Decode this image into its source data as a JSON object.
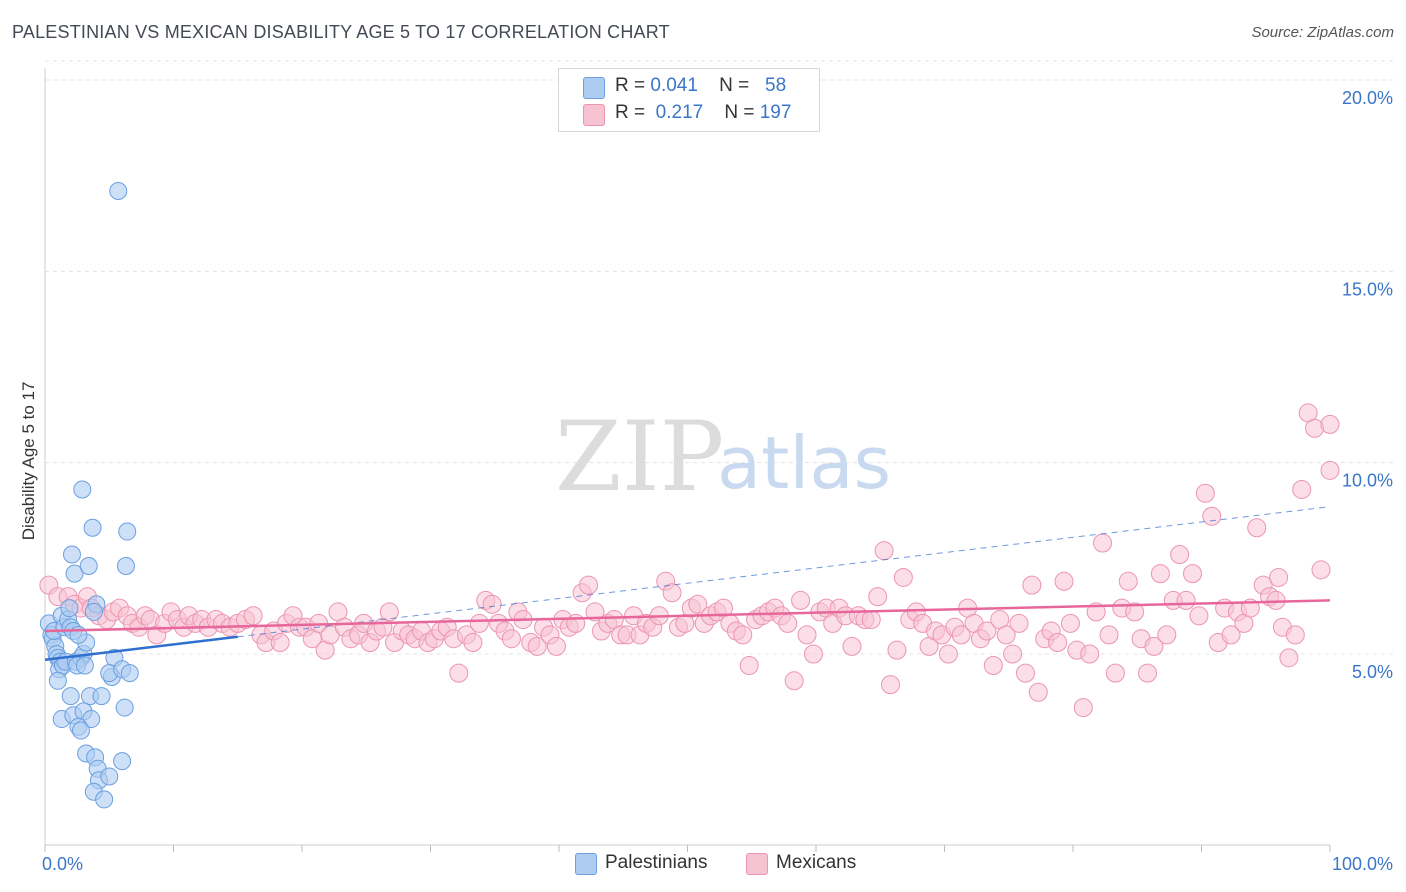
{
  "title": "PALESTINIAN VS MEXICAN DISABILITY AGE 5 TO 17 CORRELATION CHART",
  "source": "Source: ZipAtlas.com",
  "watermark": {
    "zip": "ZIP",
    "atlas": "atlas"
  },
  "legend": {
    "rows": [
      {
        "r_label": "R =",
        "r_value": "0.041",
        "n_label": "N =",
        "n_value": "58"
      },
      {
        "r_label": "R =",
        "r_value": "0.217",
        "n_label": "N =",
        "n_value": "197"
      }
    ]
  },
  "bottom_legend": {
    "palestinians": "Palestinians",
    "mexicans": "Mexicans"
  },
  "colors": {
    "blue_fill": "#aecbf2",
    "blue_stroke": "#6a9fe0",
    "blue_line": "#2f6fcf",
    "pink_fill": "#f7c3d3",
    "pink_stroke": "#ec95b1",
    "pink_line": "#e8679a",
    "axis_text": "#3a76c8",
    "grid": "#e4e4e4"
  },
  "chart_data": {
    "type": "scatter",
    "title": "PALESTINIAN VS MEXICAN DISABILITY AGE 5 TO 17 CORRELATION CHART",
    "xlabel": "",
    "ylabel": "Disability Age 5 to 17",
    "xlim": [
      0,
      100
    ],
    "ylim": [
      0,
      20.5
    ],
    "x_tick_labels": [
      {
        "value": 0,
        "label": "0.0%"
      },
      {
        "value": 100,
        "label": "100.0%"
      }
    ],
    "y_tick_labels": [
      {
        "value": 5,
        "label": "5.0%"
      },
      {
        "value": 10,
        "label": "10.0%"
      },
      {
        "value": 15,
        "label": "15.0%"
      },
      {
        "value": 20,
        "label": "20.0%"
      }
    ],
    "x_minor_ticks": [
      10,
      20,
      30,
      40,
      50,
      60,
      70,
      80,
      90
    ],
    "series": [
      {
        "name": "Palestinians",
        "r": 0.041,
        "n": 58,
        "trend_solid": {
          "x": [
            0,
            15
          ],
          "y": [
            4.85,
            5.45
          ]
        },
        "trend_dashed": {
          "x": [
            15,
            100
          ],
          "y": [
            5.45,
            8.85
          ]
        },
        "points": [
          [
            0.3,
            5.8
          ],
          [
            0.5,
            5.5
          ],
          [
            0.6,
            5.4
          ],
          [
            0.8,
            5.2
          ],
          [
            0.9,
            5.0
          ],
          [
            1.0,
            4.9
          ],
          [
            1.2,
            4.8
          ],
          [
            0.7,
            5.6
          ],
          [
            1.3,
            6.0
          ],
          [
            1.5,
            5.7
          ],
          [
            1.8,
            5.9
          ],
          [
            2.0,
            5.7
          ],
          [
            2.2,
            5.6
          ],
          [
            1.1,
            4.6
          ],
          [
            1.4,
            4.7
          ],
          [
            1.6,
            4.8
          ],
          [
            2.4,
            4.8
          ],
          [
            2.8,
            4.9
          ],
          [
            3.0,
            5.0
          ],
          [
            3.2,
            5.3
          ],
          [
            2.6,
            5.5
          ],
          [
            1.9,
            6.2
          ],
          [
            2.1,
            7.6
          ],
          [
            2.3,
            7.1
          ],
          [
            3.4,
            7.3
          ],
          [
            4.0,
            6.3
          ],
          [
            3.8,
            6.1
          ],
          [
            2.5,
            4.7
          ],
          [
            3.1,
            4.7
          ],
          [
            2.9,
            9.3
          ],
          [
            3.7,
            8.3
          ],
          [
            6.4,
            8.2
          ],
          [
            6.3,
            7.3
          ],
          [
            5.7,
            17.1
          ],
          [
            5.4,
            4.9
          ],
          [
            5.2,
            4.4
          ],
          [
            5.0,
            4.5
          ],
          [
            6.0,
            4.6
          ],
          [
            6.6,
            4.5
          ],
          [
            1.0,
            4.3
          ],
          [
            2.0,
            3.9
          ],
          [
            3.5,
            3.9
          ],
          [
            4.4,
            3.9
          ],
          [
            6.2,
            3.6
          ],
          [
            1.3,
            3.3
          ],
          [
            2.2,
            3.4
          ],
          [
            3.0,
            3.5
          ],
          [
            3.6,
            3.3
          ],
          [
            2.6,
            3.1
          ],
          [
            2.8,
            3.0
          ],
          [
            3.2,
            2.4
          ],
          [
            3.9,
            2.3
          ],
          [
            4.1,
            2.0
          ],
          [
            6.0,
            2.2
          ],
          [
            4.2,
            1.7
          ],
          [
            3.8,
            1.4
          ],
          [
            4.6,
            1.2
          ],
          [
            5.0,
            1.8
          ]
        ]
      },
      {
        "name": "Mexicans",
        "r": 0.217,
        "n": 197,
        "trend": {
          "x": [
            0,
            100
          ],
          "y": [
            5.6,
            6.4
          ]
        },
        "points": [
          [
            0.3,
            6.8
          ],
          [
            1.0,
            6.5
          ],
          [
            1.8,
            6.5
          ],
          [
            2.3,
            6.3
          ],
          [
            2.8,
            6.2
          ],
          [
            3.3,
            6.5
          ],
          [
            3.6,
            6.2
          ],
          [
            4.2,
            6.0
          ],
          [
            4.8,
            5.9
          ],
          [
            5.3,
            6.1
          ],
          [
            5.8,
            6.2
          ],
          [
            6.4,
            6.0
          ],
          [
            6.8,
            5.8
          ],
          [
            7.3,
            5.7
          ],
          [
            7.8,
            6.0
          ],
          [
            8.2,
            5.9
          ],
          [
            8.7,
            5.5
          ],
          [
            9.3,
            5.8
          ],
          [
            9.8,
            6.1
          ],
          [
            10.3,
            5.9
          ],
          [
            10.8,
            5.7
          ],
          [
            11.2,
            6.0
          ],
          [
            11.7,
            5.8
          ],
          [
            12.2,
            5.9
          ],
          [
            12.7,
            5.7
          ],
          [
            13.3,
            5.9
          ],
          [
            13.8,
            5.8
          ],
          [
            14.4,
            5.7
          ],
          [
            15.0,
            5.8
          ],
          [
            15.6,
            5.9
          ],
          [
            16.2,
            6.0
          ],
          [
            16.8,
            5.5
          ],
          [
            17.2,
            5.3
          ],
          [
            17.8,
            5.6
          ],
          [
            18.3,
            5.3
          ],
          [
            18.8,
            5.8
          ],
          [
            19.3,
            6.0
          ],
          [
            19.8,
            5.7
          ],
          [
            20.3,
            5.7
          ],
          [
            20.8,
            5.4
          ],
          [
            21.3,
            5.8
          ],
          [
            21.8,
            5.1
          ],
          [
            22.2,
            5.5
          ],
          [
            22.8,
            6.1
          ],
          [
            23.3,
            5.7
          ],
          [
            23.8,
            5.4
          ],
          [
            24.4,
            5.5
          ],
          [
            24.8,
            5.8
          ],
          [
            25.3,
            5.3
          ],
          [
            25.8,
            5.6
          ],
          [
            26.3,
            5.7
          ],
          [
            26.8,
            6.1
          ],
          [
            27.2,
            5.3
          ],
          [
            27.8,
            5.6
          ],
          [
            28.3,
            5.5
          ],
          [
            28.8,
            5.4
          ],
          [
            29.3,
            5.6
          ],
          [
            29.8,
            5.3
          ],
          [
            30.3,
            5.4
          ],
          [
            30.8,
            5.6
          ],
          [
            31.3,
            5.7
          ],
          [
            31.8,
            5.4
          ],
          [
            32.2,
            4.5
          ],
          [
            32.8,
            5.5
          ],
          [
            33.3,
            5.3
          ],
          [
            33.8,
            5.8
          ],
          [
            34.3,
            6.4
          ],
          [
            34.8,
            6.3
          ],
          [
            35.3,
            5.8
          ],
          [
            35.8,
            5.6
          ],
          [
            36.3,
            5.4
          ],
          [
            36.8,
            6.1
          ],
          [
            37.2,
            5.9
          ],
          [
            37.8,
            5.3
          ],
          [
            38.3,
            5.2
          ],
          [
            38.8,
            5.7
          ],
          [
            39.3,
            5.5
          ],
          [
            39.8,
            5.2
          ],
          [
            40.3,
            5.9
          ],
          [
            40.8,
            5.7
          ],
          [
            41.3,
            5.8
          ],
          [
            41.8,
            6.6
          ],
          [
            42.3,
            6.8
          ],
          [
            42.8,
            6.1
          ],
          [
            43.3,
            5.6
          ],
          [
            43.8,
            5.8
          ],
          [
            44.3,
            5.9
          ],
          [
            44.8,
            5.5
          ],
          [
            45.3,
            5.5
          ],
          [
            45.8,
            6.0
          ],
          [
            46.3,
            5.5
          ],
          [
            46.8,
            5.8
          ],
          [
            47.3,
            5.7
          ],
          [
            47.8,
            6.0
          ],
          [
            48.3,
            6.9
          ],
          [
            48.8,
            6.6
          ],
          [
            49.3,
            5.7
          ],
          [
            49.8,
            5.8
          ],
          [
            50.3,
            6.2
          ],
          [
            50.8,
            6.3
          ],
          [
            51.3,
            5.8
          ],
          [
            51.8,
            6.0
          ],
          [
            52.3,
            6.1
          ],
          [
            52.8,
            6.2
          ],
          [
            53.3,
            5.8
          ],
          [
            53.8,
            5.6
          ],
          [
            54.3,
            5.5
          ],
          [
            54.8,
            4.7
          ],
          [
            55.3,
            5.9
          ],
          [
            55.8,
            6.0
          ],
          [
            56.3,
            6.1
          ],
          [
            56.8,
            6.2
          ],
          [
            57.3,
            6.0
          ],
          [
            57.8,
            5.8
          ],
          [
            58.3,
            4.3
          ],
          [
            58.8,
            6.4
          ],
          [
            59.3,
            5.5
          ],
          [
            59.8,
            5.0
          ],
          [
            60.3,
            6.1
          ],
          [
            60.8,
            6.2
          ],
          [
            61.3,
            5.8
          ],
          [
            61.8,
            6.2
          ],
          [
            62.3,
            6.0
          ],
          [
            62.8,
            5.2
          ],
          [
            63.3,
            6.0
          ],
          [
            63.8,
            5.9
          ],
          [
            64.3,
            5.9
          ],
          [
            64.8,
            6.5
          ],
          [
            65.3,
            7.7
          ],
          [
            65.8,
            4.2
          ],
          [
            66.3,
            5.1
          ],
          [
            66.8,
            7.0
          ],
          [
            67.3,
            5.9
          ],
          [
            67.8,
            6.1
          ],
          [
            68.3,
            5.8
          ],
          [
            68.8,
            5.2
          ],
          [
            69.3,
            5.6
          ],
          [
            69.8,
            5.5
          ],
          [
            70.3,
            5.0
          ],
          [
            70.8,
            5.7
          ],
          [
            71.3,
            5.5
          ],
          [
            71.8,
            6.2
          ],
          [
            72.3,
            5.8
          ],
          [
            72.8,
            5.4
          ],
          [
            73.3,
            5.6
          ],
          [
            73.8,
            4.7
          ],
          [
            74.3,
            5.9
          ],
          [
            74.8,
            5.5
          ],
          [
            75.3,
            5.0
          ],
          [
            75.8,
            5.8
          ],
          [
            76.3,
            4.5
          ],
          [
            76.8,
            6.8
          ],
          [
            77.3,
            4.0
          ],
          [
            77.8,
            5.4
          ],
          [
            78.3,
            5.6
          ],
          [
            78.8,
            5.3
          ],
          [
            79.3,
            6.9
          ],
          [
            79.8,
            5.8
          ],
          [
            80.3,
            5.1
          ],
          [
            80.8,
            3.6
          ],
          [
            81.3,
            5.0
          ],
          [
            81.8,
            6.1
          ],
          [
            82.3,
            7.9
          ],
          [
            82.8,
            5.5
          ],
          [
            83.3,
            4.5
          ],
          [
            83.8,
            6.2
          ],
          [
            84.3,
            6.9
          ],
          [
            84.8,
            6.1
          ],
          [
            85.3,
            5.4
          ],
          [
            85.8,
            4.5
          ],
          [
            86.3,
            5.2
          ],
          [
            86.8,
            7.1
          ],
          [
            87.3,
            5.5
          ],
          [
            87.8,
            6.4
          ],
          [
            88.3,
            7.6
          ],
          [
            88.8,
            6.4
          ],
          [
            89.3,
            7.1
          ],
          [
            89.8,
            6.0
          ],
          [
            90.3,
            9.2
          ],
          [
            90.8,
            8.6
          ],
          [
            91.3,
            5.3
          ],
          [
            91.8,
            6.2
          ],
          [
            92.3,
            5.5
          ],
          [
            92.8,
            6.1
          ],
          [
            93.3,
            5.8
          ],
          [
            93.8,
            6.2
          ],
          [
            94.3,
            8.3
          ],
          [
            94.8,
            6.8
          ],
          [
            95.3,
            6.5
          ],
          [
            95.8,
            6.4
          ],
          [
            96.3,
            5.7
          ],
          [
            96.8,
            4.9
          ],
          [
            97.3,
            5.5
          ],
          [
            97.8,
            9.3
          ],
          [
            98.3,
            11.3
          ],
          [
            98.8,
            10.9
          ],
          [
            99.3,
            7.2
          ],
          [
            100.0,
            9.8
          ],
          [
            100.0,
            11.0
          ],
          [
            96.0,
            7.0
          ]
        ]
      }
    ]
  }
}
